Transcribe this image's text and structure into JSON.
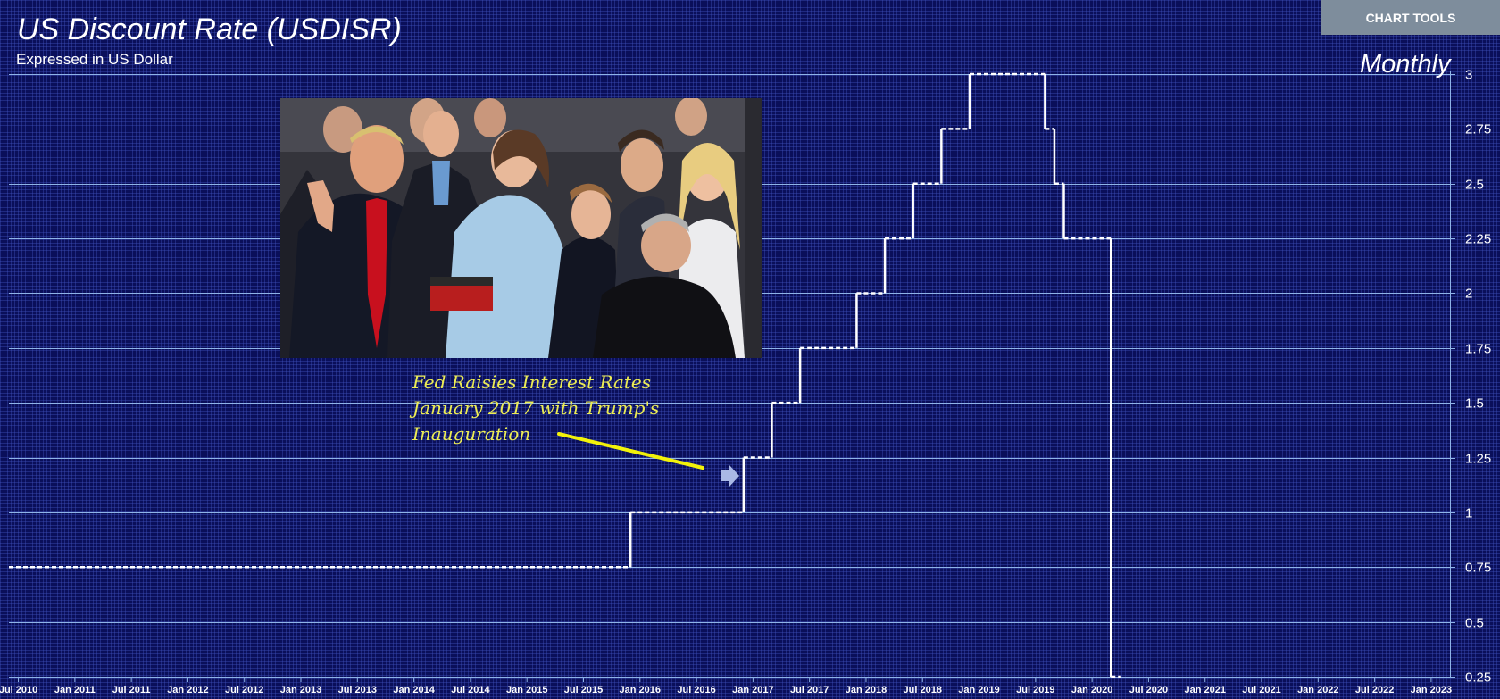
{
  "toolbar": {
    "chart_tools_label": "CHART TOOLS"
  },
  "header": {
    "frequency": "Monthly"
  },
  "annotation": {
    "lines": [
      "Fed Raisies Interest Rates",
      "January 2017 with Trump's",
      "Inauguration"
    ]
  },
  "colors": {
    "background": "#0a0f5a",
    "gridline": "#8fb4e8",
    "series_line": "#ffffff",
    "annotation_text": "#ecec55",
    "annotation_arrow": "#f2f20a",
    "marker_arrow": "#a9b8e6",
    "button": "#7e8d9c"
  },
  "chart_data": {
    "type": "line",
    "style": "step",
    "title": "US Discount Rate (USDISR)",
    "subtitle": "Expressed in US Dollar",
    "frequency": "Monthly",
    "ylabel": "",
    "ylim": [
      0.25,
      3
    ],
    "y_axis_position": "right",
    "yticks": [
      0.25,
      0.5,
      0.75,
      1,
      1.25,
      1.5,
      1.75,
      2,
      2.25,
      2.5,
      2.75,
      3
    ],
    "yticklabels": [
      "0.25",
      "0.5",
      "0.75",
      "1",
      "1.25",
      "1.5",
      "1.75",
      "2",
      "2.25",
      "2.5",
      "2.75",
      "3"
    ],
    "xlim": [
      "2010-06",
      "2023-03"
    ],
    "xticks": [
      "2010-07",
      "2011-01",
      "2011-07",
      "2012-01",
      "2012-07",
      "2013-01",
      "2013-07",
      "2014-01",
      "2014-07",
      "2015-01",
      "2015-07",
      "2016-01",
      "2016-07",
      "2017-01",
      "2017-07",
      "2018-01",
      "2018-07",
      "2019-01",
      "2019-07",
      "2020-01",
      "2020-07",
      "2021-01",
      "2021-07",
      "2022-01",
      "2022-07",
      "2023-01"
    ],
    "xticklabels": [
      "Jul 2010",
      "Jan 2011",
      "Jul 2011",
      "Jan 2012",
      "Jul 2012",
      "Jan 2013",
      "Jul 2013",
      "Jan 2014",
      "Jul 2014",
      "Jan 2015",
      "Jul 2015",
      "Jan 2016",
      "Jul 2016",
      "Jan 2017",
      "Jul 2017",
      "Jan 2018",
      "Jul 2018",
      "Jan 2019",
      "Jul 2019",
      "Jan 2020",
      "Jul 2020",
      "Jan 2021",
      "Jul 2021",
      "Jan 2022",
      "Jul 2022",
      "Jan 2023"
    ],
    "grid": "horizontal",
    "legend": "none",
    "series": [
      {
        "steps": [
          {
            "date": "2010-06",
            "value": 0.75
          },
          {
            "date": "2015-12",
            "value": 1.0
          },
          {
            "date": "2016-12",
            "value": 1.25
          },
          {
            "date": "2017-03",
            "value": 1.5
          },
          {
            "date": "2017-06",
            "value": 1.75
          },
          {
            "date": "2017-12",
            "value": 2.0
          },
          {
            "date": "2018-03",
            "value": 2.25
          },
          {
            "date": "2018-06",
            "value": 2.5
          },
          {
            "date": "2018-09",
            "value": 2.75
          },
          {
            "date": "2018-12",
            "value": 3.0
          },
          {
            "date": "2019-08",
            "value": 2.75
          },
          {
            "date": "2019-09",
            "value": 2.5
          },
          {
            "date": "2019-10",
            "value": 2.25
          },
          {
            "date": "2020-03",
            "value": 0.25
          }
        ],
        "end": "2020-04"
      }
    ]
  }
}
